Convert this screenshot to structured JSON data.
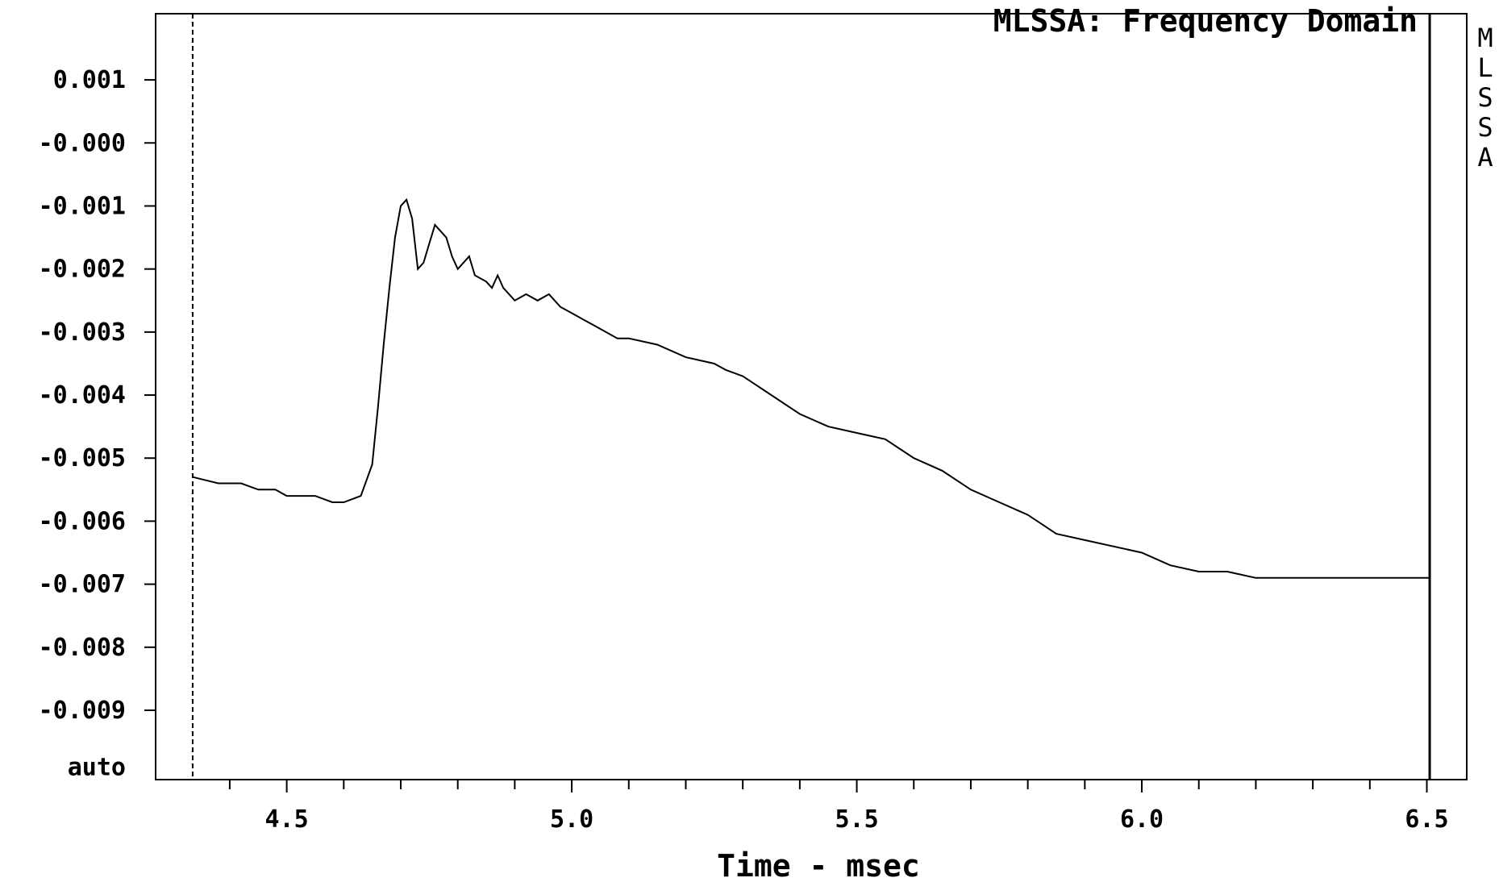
{
  "chart_data": {
    "type": "line",
    "title": "MLSSA: Frequency Domain",
    "side_label": [
      "M",
      "L",
      "S",
      "S",
      "A"
    ],
    "xlabel": "Time - msec",
    "ylabel": "",
    "xlim": [
      4.27,
      6.57
    ],
    "ylim": [
      -0.0101,
      0.00205
    ],
    "x_ticks": [
      {
        "value": 4.5,
        "label": "4.5"
      },
      {
        "value": 5.0,
        "label": "5.0"
      },
      {
        "value": 5.5,
        "label": "5.5"
      },
      {
        "value": 6.0,
        "label": "6.0"
      },
      {
        "value": 6.5,
        "label": "6.5"
      }
    ],
    "x_minor_ticks": [
      4.4,
      4.6,
      4.7,
      4.8,
      4.9,
      5.1,
      5.2,
      5.3,
      5.4,
      5.6,
      5.7,
      5.8,
      5.9,
      6.1,
      6.2,
      6.3,
      6.4
    ],
    "y_ticks": [
      {
        "value": 0.001,
        "label": "0.001"
      },
      {
        "value": 0.0,
        "label": "-0.000"
      },
      {
        "value": -0.001,
        "label": "-0.001"
      },
      {
        "value": -0.002,
        "label": "-0.002"
      },
      {
        "value": -0.003,
        "label": "-0.003"
      },
      {
        "value": -0.004,
        "label": "-0.004"
      },
      {
        "value": -0.005,
        "label": "-0.005"
      },
      {
        "value": -0.006,
        "label": "-0.006"
      },
      {
        "value": -0.007,
        "label": "-0.007"
      },
      {
        "value": -0.008,
        "label": "-0.008"
      },
      {
        "value": -0.009,
        "label": "-0.009"
      }
    ],
    "y_bottom_label": "auto",
    "y_bottom_value": -0.0099,
    "cursor_left_x": 4.335,
    "cursor_right_x": 6.505,
    "grid": false,
    "series": [
      {
        "color": "#000000",
        "x": [
          4.335,
          4.38,
          4.42,
          4.45,
          4.48,
          4.5,
          4.52,
          4.55,
          4.58,
          4.6,
          4.63,
          4.65,
          4.66,
          4.67,
          4.68,
          4.69,
          4.7,
          4.71,
          4.72,
          4.73,
          4.74,
          4.75,
          4.76,
          4.78,
          4.79,
          4.8,
          4.81,
          4.82,
          4.83,
          4.85,
          4.86,
          4.87,
          4.88,
          4.9,
          4.92,
          4.94,
          4.96,
          4.98,
          5.0,
          5.02,
          5.04,
          5.06,
          5.08,
          5.1,
          5.15,
          5.2,
          5.25,
          5.27,
          5.3,
          5.35,
          5.4,
          5.45,
          5.5,
          5.55,
          5.6,
          5.65,
          5.7,
          5.75,
          5.8,
          5.85,
          5.9,
          5.95,
          6.0,
          6.05,
          6.1,
          6.15,
          6.2,
          6.25,
          6.3,
          6.35,
          6.4,
          6.45,
          6.505
        ],
        "y": [
          -0.0053,
          -0.0054,
          -0.0054,
          -0.0055,
          -0.0055,
          -0.0056,
          -0.0056,
          -0.0056,
          -0.0057,
          -0.0057,
          -0.0056,
          -0.0051,
          -0.0042,
          -0.0032,
          -0.0023,
          -0.0015,
          -0.001,
          -0.0009,
          -0.0012,
          -0.002,
          -0.0019,
          -0.0016,
          -0.0013,
          -0.0015,
          -0.0018,
          -0.002,
          -0.0019,
          -0.0018,
          -0.0021,
          -0.0022,
          -0.0023,
          -0.0021,
          -0.0023,
          -0.0025,
          -0.0024,
          -0.0025,
          -0.0024,
          -0.0026,
          -0.0027,
          -0.0028,
          -0.0029,
          -0.003,
          -0.0031,
          -0.0031,
          -0.0032,
          -0.0034,
          -0.0035,
          -0.0036,
          -0.0037,
          -0.004,
          -0.0043,
          -0.0045,
          -0.0046,
          -0.0047,
          -0.005,
          -0.0052,
          -0.0055,
          -0.0057,
          -0.0059,
          -0.0062,
          -0.0063,
          -0.0064,
          -0.0065,
          -0.0067,
          -0.0068,
          -0.0068,
          -0.0069,
          -0.0069,
          -0.0069,
          -0.0069,
          -0.0069,
          -0.0069,
          -0.0069
        ]
      }
    ]
  }
}
